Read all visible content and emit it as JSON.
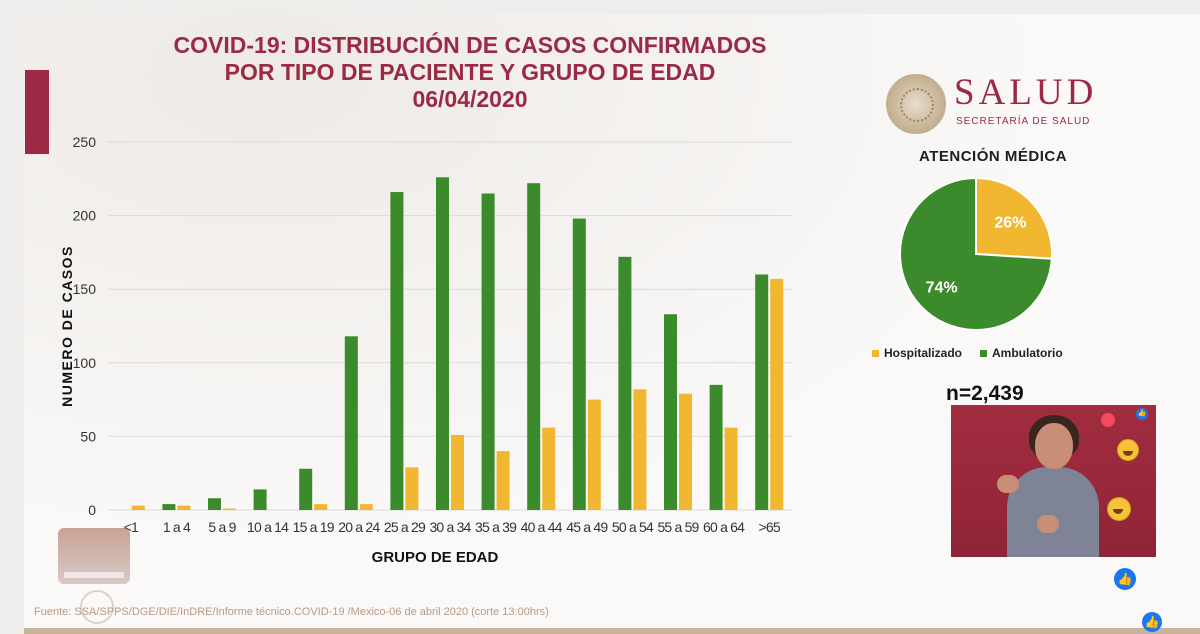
{
  "title": {
    "line1": "COVID-19: DISTRIBUCIÓN DE CASOS CONFIRMADOS",
    "line2": "POR TIPO DE PACIENTE Y GRUPO DE EDAD",
    "line3": "06/04/2020"
  },
  "colors": {
    "accent": "#9a2a45",
    "ambulatorio": "#3b8a2b",
    "hospitalizado": "#f2b731"
  },
  "chart_data": [
    {
      "type": "bar",
      "title": "",
      "xlabel": "GRUPO DE EDAD",
      "ylabel": "NUMERO DE CASOS",
      "ylim": [
        0,
        250
      ],
      "yticks": [
        0,
        50,
        100,
        150,
        200,
        250
      ],
      "grid": true,
      "categories": [
        "<1",
        "1 a 4",
        "5 a 9",
        "10 a 14",
        "15 a 19",
        "20 a 24",
        "25 a 29",
        "30 a 34",
        "35 a 39",
        "40 a 44",
        "45 a 49",
        "50 a 54",
        "55 a 59",
        "60 a 64",
        ">65"
      ],
      "series": [
        {
          "name": "Ambulatorio",
          "color": "#3b8a2b",
          "values": [
            0,
            4,
            8,
            14,
            28,
            118,
            216,
            226,
            215,
            222,
            198,
            172,
            133,
            85,
            160
          ]
        },
        {
          "name": "Hospitalizado",
          "color": "#f2b731",
          "values": [
            3,
            3,
            1,
            0,
            4,
            4,
            29,
            51,
            40,
            56,
            75,
            82,
            79,
            56,
            157
          ]
        }
      ]
    },
    {
      "type": "pie",
      "title": "ATENCIÓN MÉDICA",
      "slices": [
        {
          "label": "Hospitalizado",
          "value": 26,
          "display": "26%",
          "color": "#f2b731"
        },
        {
          "label": "Ambulatorio",
          "value": 74,
          "display": "74%",
          "color": "#3b8a2b"
        }
      ],
      "legend_position": "bottom"
    }
  ],
  "n_label": "n=2,439",
  "brand": {
    "name": "SALUD",
    "subtitle": "SECRETARÍA DE SALUD"
  },
  "source": "Fuente: SSA/SPPS/DGE/DIE/InDRE/Informe técnico.COVID-19 /Mexico-06 de abril 2020 (corte 13:00hrs)",
  "icons": {
    "like": "like-icon",
    "laugh": "laugh-emoji-icon",
    "heart": "heart-icon"
  }
}
